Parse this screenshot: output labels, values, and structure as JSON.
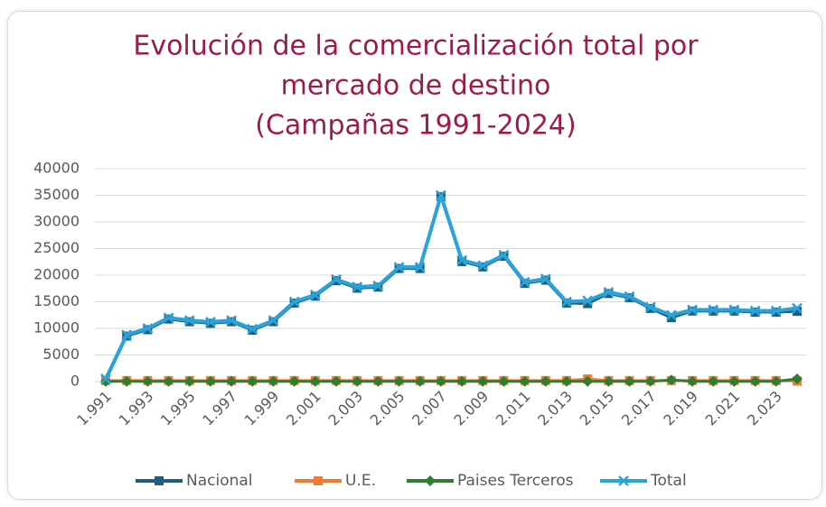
{
  "chart_data": {
    "type": "line",
    "title": [
      "Evolución de la comercialización total por",
      "mercado de destino",
      "(Campañas 1991-2024)"
    ],
    "categories": [
      "1.991",
      null,
      "1.993",
      null,
      "1.995",
      null,
      "1.997",
      null,
      "1.999",
      null,
      "2.001",
      null,
      "2.003",
      null,
      "2.005",
      null,
      "2.007",
      null,
      "2.009",
      null,
      "2.011",
      null,
      "2.013",
      null,
      "2.015",
      null,
      "2.017",
      null,
      "2.019",
      null,
      "2.021",
      null,
      "2.023",
      null
    ],
    "series": [
      {
        "name": "Nacional",
        "color": "#1f5f7a",
        "marker": "square",
        "values": [
          250,
          8550,
          9750,
          11750,
          11250,
          10950,
          11250,
          9650,
          11250,
          14750,
          16050,
          18950,
          17550,
          17750,
          21250,
          21250,
          34750,
          22550,
          21550,
          23550,
          18450,
          19050,
          14750,
          14650,
          16550,
          15750,
          13750,
          12000,
          13250,
          13250,
          13250,
          13050,
          13050,
          13200
        ]
      },
      {
        "name": "U.E.",
        "color": "#ed7d31",
        "marker": "square",
        "values": [
          200,
          200,
          200,
          200,
          200,
          200,
          200,
          200,
          200,
          200,
          200,
          200,
          200,
          200,
          200,
          200,
          200,
          200,
          200,
          200,
          200,
          200,
          200,
          500,
          200,
          200,
          200,
          200,
          200,
          200,
          200,
          200,
          200,
          100
        ]
      },
      {
        "name": "Paises Terceros",
        "color": "#2e7d32",
        "marker": "diamond",
        "values": [
          50,
          50,
          50,
          50,
          50,
          50,
          50,
          50,
          50,
          50,
          50,
          50,
          50,
          50,
          50,
          50,
          50,
          50,
          50,
          50,
          50,
          50,
          50,
          50,
          50,
          50,
          50,
          300,
          50,
          50,
          50,
          50,
          50,
          500
        ]
      },
      {
        "name": "Total",
        "color": "#29a3d9",
        "marker": "x",
        "values": [
          500,
          8800,
          10000,
          12000,
          11500,
          11200,
          11500,
          9900,
          11500,
          15000,
          16300,
          19200,
          17800,
          18000,
          21500,
          21500,
          35000,
          22800,
          21800,
          23800,
          18700,
          19300,
          15000,
          15200,
          16800,
          16000,
          14000,
          12500,
          13500,
          13500,
          13500,
          13300,
          13300,
          13800
        ]
      }
    ],
    "ylim": [
      0,
      40000
    ],
    "yticks": [
      0,
      5000,
      10000,
      15000,
      20000,
      25000,
      30000,
      35000,
      40000
    ],
    "grid": true,
    "legend": "bottom"
  }
}
